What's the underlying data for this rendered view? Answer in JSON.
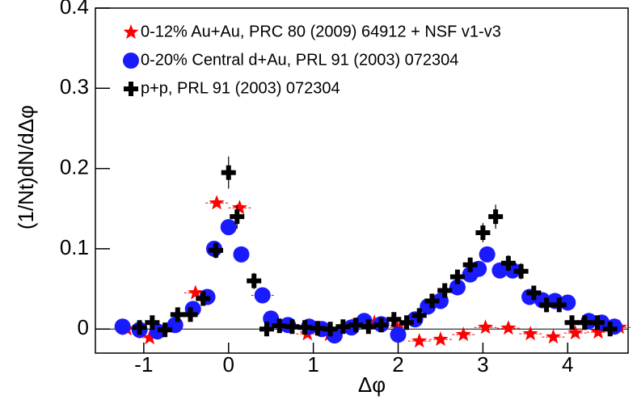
{
  "chart_data": {
    "type": "scatter",
    "xlabel": "Δφ",
    "ylabel": "(1/Nt)dN/dΔφ",
    "xlim": [
      -1.5708,
      4.7124
    ],
    "ylim": [
      -0.03,
      0.4
    ],
    "xticks": [
      -1,
      0,
      1,
      2,
      3,
      4
    ],
    "yticks": [
      0,
      0.1,
      0.2,
      0.3,
      0.4
    ],
    "zero_line": true,
    "legend": "upper left",
    "series": [
      {
        "name": "0-12% Au+Au, PRC 80 (2009) 64912 + NSF v1-v3",
        "color": "#ff0000",
        "marker": "star",
        "x": [
          -1.2,
          -0.93,
          -0.67,
          -0.39,
          -0.14,
          0.13,
          0.4,
          0.66,
          0.93,
          1.19,
          1.46,
          1.72,
          1.99,
          2.25,
          2.5,
          2.77,
          3.03,
          3.3,
          3.56,
          3.83,
          4.09,
          4.36,
          4.61
        ],
        "values": [
          0.0,
          -0.011,
          0.003,
          0.045,
          0.157,
          0.151,
          0.042,
          0.003,
          -0.006,
          -0.007,
          0.004,
          0.008,
          0.002,
          -0.015,
          -0.013,
          -0.007,
          0.002,
          0.001,
          -0.006,
          -0.01,
          -0.005,
          -0.004,
          0.002
        ]
      },
      {
        "name": "0-20% Central d+Au, PRL 91 (2003) 072304",
        "color": "#1a1aff",
        "marker": "circle",
        "x": [
          -1.25,
          -1.05,
          -0.84,
          -0.63,
          -0.42,
          -0.25,
          -0.17,
          0.0,
          0.15,
          0.4,
          0.5,
          0.7,
          0.95,
          1.1,
          1.25,
          1.45,
          1.6,
          1.8,
          2.0,
          2.2,
          2.35,
          2.5,
          2.7,
          2.85,
          2.95,
          3.05,
          3.2,
          3.35,
          3.55,
          3.7,
          3.85,
          4.0,
          4.25,
          4.4,
          4.55
        ],
        "values": [
          0.003,
          -0.001,
          -0.003,
          0.005,
          0.025,
          0.04,
          0.1,
          0.127,
          0.093,
          0.042,
          0.013,
          0.005,
          0.003,
          0.0,
          -0.008,
          0.002,
          0.01,
          0.006,
          -0.007,
          0.012,
          0.028,
          0.035,
          0.052,
          0.068,
          0.075,
          0.093,
          0.073,
          0.073,
          0.04,
          0.036,
          0.035,
          0.033,
          0.01,
          0.008,
          0.003
        ]
      },
      {
        "name": "p+p, PRL 91 (2003) 072304",
        "color": "#000000",
        "marker": "cross",
        "x": [
          -1.05,
          -0.9,
          -0.75,
          -0.6,
          -0.45,
          -0.3,
          -0.15,
          0.0,
          0.1,
          0.3,
          0.45,
          0.6,
          0.75,
          0.9,
          1.05,
          1.2,
          1.35,
          1.5,
          1.65,
          1.8,
          1.95,
          2.1,
          2.25,
          2.4,
          2.55,
          2.7,
          2.85,
          3.0,
          3.15,
          3.3,
          3.45,
          3.6,
          3.75,
          3.9,
          4.05,
          4.2,
          4.35,
          4.5
        ],
        "values": [
          0.002,
          0.008,
          -0.001,
          0.018,
          0.018,
          0.038,
          0.098,
          0.195,
          0.14,
          0.06,
          0.0,
          0.004,
          0.003,
          0.002,
          0.001,
          0.0,
          0.003,
          0.005,
          0.003,
          0.005,
          0.012,
          0.008,
          0.017,
          0.035,
          0.048,
          0.065,
          0.08,
          0.12,
          0.14,
          0.082,
          0.072,
          0.045,
          0.03,
          0.03,
          0.008,
          0.008,
          0.008,
          0.0
        ],
        "errors": [
          0.006,
          0.006,
          0.006,
          0.006,
          0.006,
          0.007,
          0.01,
          0.02,
          0.015,
          0.01,
          0.006,
          0.006,
          0.006,
          0.006,
          0.006,
          0.006,
          0.006,
          0.006,
          0.006,
          0.006,
          0.006,
          0.006,
          0.006,
          0.007,
          0.007,
          0.008,
          0.009,
          0.012,
          0.015,
          0.01,
          0.01,
          0.008,
          0.007,
          0.007,
          0.006,
          0.006,
          0.006,
          0.006
        ]
      }
    ]
  }
}
